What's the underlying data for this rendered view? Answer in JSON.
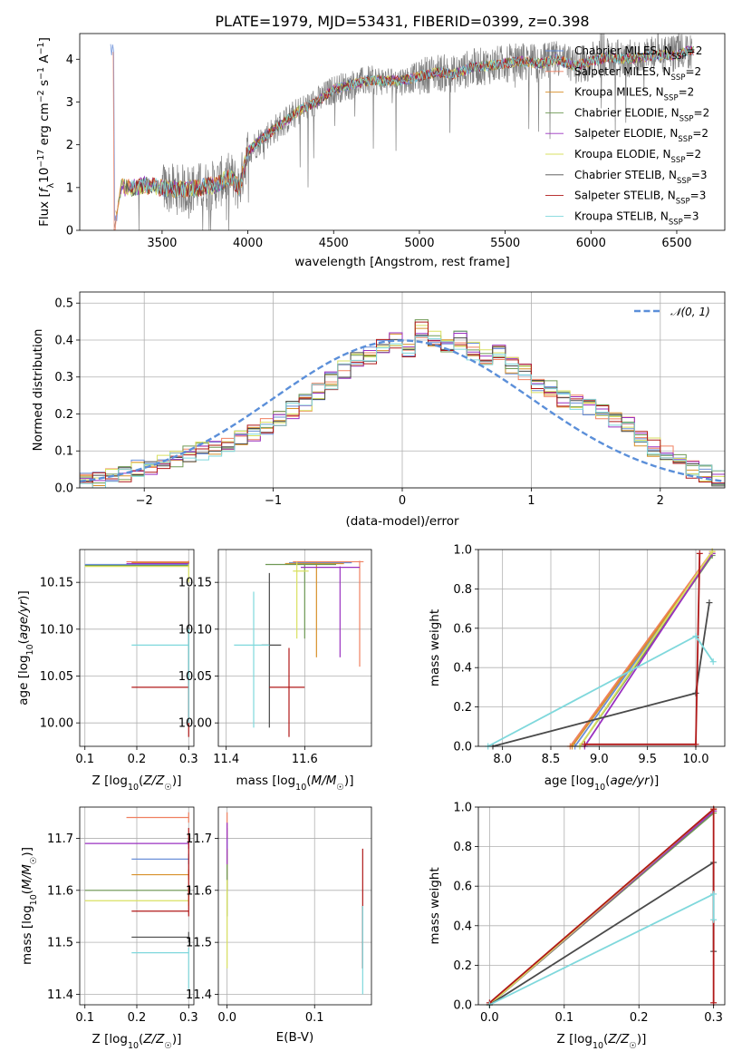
{
  "colors": {
    "Chabrier MILES": "#6a8fd8",
    "Salpeter MILES": "#f08060",
    "Kroupa MILES": "#d8902a",
    "Chabrier ELODIE": "#6f9a55",
    "Salpeter ELODIE": "#9a30c0",
    "Kroupa ELODIE": "#d9e060",
    "Chabrier STELIB": "#4a4a4a",
    "Salpeter STELIB": "#b01818",
    "Kroupa STELIB": "#7fd8dc"
  },
  "chart_data": [
    {
      "id": "spectrum",
      "type": "line",
      "title": "PLATE=1979, MJD=53431, FIBERID=0399, z=0.398",
      "xlabel": "wavelength [Angstrom, rest frame]",
      "ylabel": "Flux [f_λ 10^-17 erg cm^-2 s^-1 A^-1]",
      "xlim": [
        3020,
        6780
      ],
      "ylim": [
        0,
        4.6
      ],
      "xticks": [
        3500,
        4000,
        4500,
        5000,
        5500,
        6000,
        6500
      ],
      "yticks": [
        0,
        1,
        2,
        3,
        4
      ],
      "grid": false,
      "legend_position": "top-right",
      "data_color": "#808080",
      "data_anchors": [
        [
          3220,
          0.0
        ],
        [
          3260,
          1.0
        ],
        [
          3320,
          1.0
        ],
        [
          3400,
          1.05
        ],
        [
          3500,
          1.0
        ],
        [
          3600,
          0.95
        ],
        [
          3700,
          1.0
        ],
        [
          3800,
          1.05
        ],
        [
          3900,
          1.25
        ],
        [
          3950,
          1.0
        ],
        [
          4000,
          1.85
        ],
        [
          4100,
          2.2
        ],
        [
          4200,
          2.5
        ],
        [
          4300,
          2.8
        ],
        [
          4400,
          3.0
        ],
        [
          4500,
          3.3
        ],
        [
          4600,
          3.4
        ],
        [
          4700,
          3.5
        ],
        [
          4800,
          3.5
        ],
        [
          4900,
          3.5
        ],
        [
          5000,
          3.6
        ],
        [
          5100,
          3.7
        ],
        [
          5200,
          3.65
        ],
        [
          5300,
          3.8
        ],
        [
          5400,
          3.85
        ],
        [
          5500,
          3.9
        ],
        [
          5600,
          3.95
        ],
        [
          5700,
          3.9
        ],
        [
          5800,
          4.0
        ],
        [
          5900,
          3.85
        ],
        [
          6000,
          3.95
        ],
        [
          6100,
          4.05
        ],
        [
          6200,
          4.0
        ],
        [
          6300,
          4.05
        ],
        [
          6400,
          4.1
        ],
        [
          6500,
          4.1
        ],
        [
          6580,
          4.2
        ]
      ],
      "model_xrange": [
        3200,
        6600
      ],
      "legend": [
        {
          "label": "Chabrier MILES, N",
          "sub": "SSP",
          "tail": "=2"
        },
        {
          "label": "Salpeter MILES, N",
          "sub": "SSP",
          "tail": "=2"
        },
        {
          "label": "Kroupa MILES, N",
          "sub": "SSP",
          "tail": "=2"
        },
        {
          "label": "Chabrier ELODIE, N",
          "sub": "SSP",
          "tail": "=2"
        },
        {
          "label": "Salpeter ELODIE, N",
          "sub": "SSP",
          "tail": "=2"
        },
        {
          "label": "Kroupa ELODIE, N",
          "sub": "SSP",
          "tail": "=2"
        },
        {
          "label": "Chabrier STELIB, N",
          "sub": "SSP",
          "tail": "=3"
        },
        {
          "label": "Salpeter STELIB, N",
          "sub": "SSP",
          "tail": "=3"
        },
        {
          "label": "Kroupa STELIB, N",
          "sub": "SSP",
          "tail": "=3"
        }
      ]
    },
    {
      "id": "residuals",
      "type": "area",
      "title": "",
      "xlabel": "(data-model)/error",
      "ylabel": "Normed distribution",
      "xlim": [
        -2.5,
        2.5
      ],
      "ylim": [
        0,
        0.53
      ],
      "xticks": [
        -2,
        -1,
        0,
        1,
        2
      ],
      "yticks": [
        0.0,
        0.1,
        0.2,
        0.3,
        0.4,
        0.5
      ],
      "grid": true,
      "legend": "N(0,1)",
      "legend_position": "top-right",
      "gaussian_color": "#5b8fd9",
      "bin_width": 0.1,
      "hist_x_start": -2.5,
      "hist_reference": [
        0.018,
        0.02,
        0.035,
        0.04,
        0.055,
        0.06,
        0.07,
        0.08,
        0.09,
        0.1,
        0.11,
        0.12,
        0.13,
        0.15,
        0.17,
        0.19,
        0.21,
        0.23,
        0.26,
        0.29,
        0.32,
        0.35,
        0.36,
        0.38,
        0.4,
        0.37,
        0.43,
        0.4,
        0.38,
        0.4,
        0.37,
        0.35,
        0.37,
        0.33,
        0.31,
        0.28,
        0.27,
        0.24,
        0.23,
        0.22,
        0.2,
        0.18,
        0.17,
        0.13,
        0.11,
        0.09,
        0.07,
        0.05,
        0.04,
        0.03
      ]
    },
    {
      "id": "age_vs_Z",
      "type": "scatter",
      "xlabel": "Z [log10(Z/Z☉)]",
      "ylabel": "age  [log10(age/yr)]",
      "xlim": [
        0.09,
        0.31
      ],
      "ylim": [
        9.975,
        10.185
      ],
      "xticks": [
        0.1,
        0.2,
        0.3
      ],
      "yticks": [
        10.0,
        10.05,
        10.1,
        10.15
      ],
      "grid": true,
      "errorbars": [
        {
          "model": "Chabrier MILES",
          "x": 0.3,
          "y": 10.169,
          "xlo": 0.1,
          "xhi": 0.3,
          "ylo": 10.168,
          "yhi": 10.17
        },
        {
          "model": "Salpeter MILES",
          "x": 0.3,
          "y": 10.172,
          "xlo": 0.18,
          "xhi": 0.3,
          "ylo": 10.171,
          "yhi": 10.173
        },
        {
          "model": "Kroupa MILES",
          "x": 0.3,
          "y": 10.171,
          "xlo": 0.19,
          "xhi": 0.3,
          "ylo": 10.17,
          "yhi": 10.172
        },
        {
          "model": "Chabrier ELODIE",
          "x": 0.3,
          "y": 10.168,
          "xlo": 0.1,
          "xhi": 0.3,
          "ylo": 10.167,
          "yhi": 10.169
        },
        {
          "model": "Salpeter ELODIE",
          "x": 0.3,
          "y": 10.17,
          "xlo": 0.18,
          "xhi": 0.3,
          "ylo": 10.169,
          "yhi": 10.171
        },
        {
          "model": "Kroupa ELODIE",
          "x": 0.3,
          "y": 10.167,
          "xlo": 0.1,
          "xhi": 0.3,
          "ylo": 10.15,
          "yhi": 10.17
        },
        {
          "model": "Chabrier STELIB",
          "x": 0.3,
          "y": 10.14,
          "xlo": 0.3,
          "xhi": 0.3,
          "ylo": 10.0,
          "yhi": 10.145
        },
        {
          "model": "Salpeter STELIB",
          "x": 0.3,
          "y": 10.038,
          "xlo": 0.19,
          "xhi": 0.3,
          "ylo": 9.985,
          "yhi": 10.045
        },
        {
          "model": "Kroupa STELIB",
          "x": 0.3,
          "y": 10.083,
          "xlo": 0.19,
          "xhi": 0.3,
          "ylo": 10.0,
          "yhi": 10.1
        }
      ]
    },
    {
      "id": "age_vs_mass",
      "type": "scatter",
      "xlabel": "mass [log10(M/M☉)]",
      "ylabel": "",
      "xlim": [
        11.38,
        11.77
      ],
      "ylim": [
        9.975,
        10.185
      ],
      "xticks": [
        11.4,
        11.6
      ],
      "yticks": [
        10.0,
        10.05,
        10.1,
        10.15
      ],
      "grid": true,
      "errorbars": [
        {
          "model": "Chabrier MILES",
          "x": 11.66,
          "y": 10.171,
          "xlo": 11.56,
          "xhi": 11.72,
          "ylo": 10.17,
          "yhi": 10.172
        },
        {
          "model": "Salpeter MILES",
          "x": 11.74,
          "y": 10.172,
          "xlo": 11.57,
          "xhi": 11.75,
          "ylo": 10.06,
          "yhi": 10.173
        },
        {
          "model": "Kroupa MILES",
          "x": 11.63,
          "y": 10.17,
          "xlo": 11.55,
          "xhi": 11.7,
          "ylo": 10.07,
          "yhi": 10.171
        },
        {
          "model": "Chabrier ELODIE",
          "x": 11.6,
          "y": 10.169,
          "xlo": 11.5,
          "xhi": 11.68,
          "ylo": 10.09,
          "yhi": 10.17
        },
        {
          "model": "Salpeter ELODIE",
          "x": 11.69,
          "y": 10.166,
          "xlo": 11.59,
          "xhi": 11.74,
          "ylo": 10.07,
          "yhi": 10.167
        },
        {
          "model": "Kroupa ELODIE",
          "x": 11.58,
          "y": 10.162,
          "xlo": 11.57,
          "xhi": 11.61,
          "ylo": 10.09,
          "yhi": 10.172
        },
        {
          "model": "Chabrier STELIB",
          "x": 11.51,
          "y": 10.083,
          "xlo": 11.49,
          "xhi": 11.54,
          "ylo": 9.995,
          "yhi": 10.16
        },
        {
          "model": "Salpeter STELIB",
          "x": 11.56,
          "y": 10.038,
          "xlo": 11.51,
          "xhi": 11.6,
          "ylo": 9.985,
          "yhi": 10.08
        },
        {
          "model": "Kroupa STELIB",
          "x": 11.47,
          "y": 10.083,
          "xlo": 11.42,
          "xhi": 11.51,
          "ylo": 9.995,
          "yhi": 10.14
        }
      ]
    },
    {
      "id": "mass_weight_vs_age",
      "type": "line",
      "xlabel": "age  [log10(age/yr)]",
      "ylabel": "mass weight",
      "xlim": [
        7.75,
        10.3
      ],
      "ylim": [
        0,
        1.0
      ],
      "xticks": [
        8.0,
        8.5,
        9.0,
        9.5,
        10.0
      ],
      "yticks": [
        0.0,
        0.2,
        0.4,
        0.6,
        0.8,
        1.0
      ],
      "grid": true,
      "series": [
        {
          "model": "Chabrier MILES",
          "x": [
            8.75,
            10.17
          ],
          "y": [
            0.0,
            0.98
          ]
        },
        {
          "model": "Salpeter MILES",
          "x": [
            8.7,
            10.17
          ],
          "y": [
            0.0,
            0.99
          ]
        },
        {
          "model": "Kroupa MILES",
          "x": [
            8.72,
            10.17
          ],
          "y": [
            0.0,
            0.98
          ]
        },
        {
          "model": "Chabrier ELODIE",
          "x": [
            8.8,
            10.17
          ],
          "y": [
            0.0,
            0.97
          ]
        },
        {
          "model": "Salpeter ELODIE",
          "x": [
            8.85,
            10.17
          ],
          "y": [
            0.0,
            0.98
          ]
        },
        {
          "model": "Kroupa ELODIE",
          "x": [
            8.8,
            10.17
          ],
          "y": [
            0.0,
            0.99
          ]
        },
        {
          "model": "Chabrier STELIB",
          "x": [
            7.9,
            10.0,
            10.14
          ],
          "y": [
            0.0,
            0.27,
            0.73
          ]
        },
        {
          "model": "Salpeter STELIB",
          "x": [
            8.85,
            10.0,
            10.04
          ],
          "y": [
            0.01,
            0.01,
            0.98
          ]
        },
        {
          "model": "Kroupa STELIB",
          "x": [
            7.85,
            10.0,
            10.18
          ],
          "y": [
            0.0,
            0.56,
            0.43
          ]
        }
      ]
    },
    {
      "id": "mass_vs_Z",
      "type": "scatter",
      "xlabel": "Z [log10(Z/Z☉)]",
      "ylabel": "mass [log10(M/M☉)]",
      "xlim": [
        0.09,
        0.31
      ],
      "ylim": [
        11.38,
        11.76
      ],
      "xticks": [
        0.1,
        0.2,
        0.3
      ],
      "yticks": [
        11.4,
        11.5,
        11.6,
        11.7
      ],
      "grid": true,
      "errorbars": [
        {
          "model": "Chabrier MILES",
          "x": 0.3,
          "y": 11.66,
          "xlo": 0.19,
          "xhi": 0.3,
          "ylo": 11.65,
          "yhi": 11.67
        },
        {
          "model": "Salpeter MILES",
          "x": 0.3,
          "y": 11.74,
          "xlo": 0.18,
          "xhi": 0.3,
          "ylo": 11.73,
          "yhi": 11.75
        },
        {
          "model": "Kroupa MILES",
          "x": 0.3,
          "y": 11.63,
          "xlo": 0.19,
          "xhi": 0.3,
          "ylo": 11.62,
          "yhi": 11.64
        },
        {
          "model": "Chabrier ELODIE",
          "x": 0.3,
          "y": 11.6,
          "xlo": 0.1,
          "xhi": 0.3,
          "ylo": 11.59,
          "yhi": 11.61
        },
        {
          "model": "Salpeter ELODIE",
          "x": 0.3,
          "y": 11.69,
          "xlo": 0.1,
          "xhi": 0.3,
          "ylo": 11.68,
          "yhi": 11.7
        },
        {
          "model": "Kroupa ELODIE",
          "x": 0.3,
          "y": 11.58,
          "xlo": 0.1,
          "xhi": 0.3,
          "ylo": 11.57,
          "yhi": 11.59
        },
        {
          "model": "Chabrier STELIB",
          "x": 0.3,
          "y": 11.51,
          "xlo": 0.19,
          "xhi": 0.3,
          "ylo": 11.5,
          "yhi": 11.52
        },
        {
          "model": "Salpeter STELIB",
          "x": 0.3,
          "y": 11.56,
          "xlo": 0.19,
          "xhi": 0.3,
          "ylo": 11.55,
          "yhi": 11.72
        },
        {
          "model": "Kroupa STELIB",
          "x": 0.3,
          "y": 11.48,
          "xlo": 0.19,
          "xhi": 0.3,
          "ylo": 11.41,
          "yhi": 11.49
        }
      ]
    },
    {
      "id": "mass_vs_EBV",
      "type": "scatter",
      "xlabel": "E(B-V)",
      "ylabel": "",
      "xlim": [
        -0.01,
        0.165
      ],
      "ylim": [
        11.38,
        11.76
      ],
      "xticks": [
        0.0,
        0.1
      ],
      "yticks": [
        11.4,
        11.5,
        11.6,
        11.7
      ],
      "grid": true,
      "errorbars": [
        {
          "model": "Chabrier MILES",
          "x": 0.0,
          "y": 11.66,
          "xlo": 0.0,
          "xhi": 0.0,
          "ylo": 11.6,
          "yhi": 11.72
        },
        {
          "model": "Salpeter MILES",
          "x": 0.0,
          "y": 11.74,
          "xlo": 0.0,
          "xhi": 0.0,
          "ylo": 11.7,
          "yhi": 11.75
        },
        {
          "model": "Kroupa MILES",
          "x": 0.0,
          "y": 11.63,
          "xlo": 0.0,
          "xhi": 0.0,
          "ylo": 11.6,
          "yhi": 11.68
        },
        {
          "model": "Chabrier ELODIE",
          "x": 0.0,
          "y": 11.6,
          "xlo": 0.0,
          "xhi": 0.0,
          "ylo": 11.55,
          "yhi": 11.65
        },
        {
          "model": "Salpeter ELODIE",
          "x": 0.0,
          "y": 11.69,
          "xlo": 0.0,
          "xhi": 0.0,
          "ylo": 11.65,
          "yhi": 11.73
        },
        {
          "model": "Kroupa ELODIE",
          "x": 0.0,
          "y": 11.58,
          "xlo": 0.0,
          "xhi": 0.0,
          "ylo": 11.45,
          "yhi": 11.62
        },
        {
          "model": "Chabrier STELIB",
          "x": 0.155,
          "y": 11.51,
          "xlo": 0.155,
          "xhi": 0.155,
          "ylo": 11.45,
          "yhi": 11.57
        },
        {
          "model": "Salpeter STELIB",
          "x": 0.155,
          "y": 11.56,
          "xlo": 0.155,
          "xhi": 0.155,
          "ylo": 11.45,
          "yhi": 11.68
        },
        {
          "model": "Kroupa STELIB",
          "x": 0.155,
          "y": 11.48,
          "xlo": 0.155,
          "xhi": 0.155,
          "ylo": 11.4,
          "yhi": 11.57
        }
      ]
    },
    {
      "id": "mass_weight_vs_Z",
      "type": "line",
      "xlabel": "Z [log10(Z/Z☉)]",
      "ylabel": "mass weight",
      "xlim": [
        -0.015,
        0.315
      ],
      "ylim": [
        0,
        1.0
      ],
      "xticks": [
        0.0,
        0.1,
        0.2,
        0.3
      ],
      "yticks": [
        0.0,
        0.2,
        0.4,
        0.6,
        0.8,
        1.0
      ],
      "grid": true,
      "series": [
        {
          "model": "Chabrier MILES",
          "x": [
            0.0,
            0.3
          ],
          "y": [
            0.0,
            0.98
          ]
        },
        {
          "model": "Salpeter MILES",
          "x": [
            0.0,
            0.3
          ],
          "y": [
            0.0,
            0.99
          ]
        },
        {
          "model": "Kroupa MILES",
          "x": [
            0.0,
            0.3
          ],
          "y": [
            0.0,
            0.98
          ]
        },
        {
          "model": "Chabrier ELODIE",
          "x": [
            0.0,
            0.3
          ],
          "y": [
            0.0,
            0.97
          ]
        },
        {
          "model": "Salpeter ELODIE",
          "x": [
            0.0,
            0.3
          ],
          "y": [
            0.0,
            0.98
          ]
        },
        {
          "model": "Kroupa ELODIE",
          "x": [
            0.0,
            0.3
          ],
          "y": [
            0.0,
            0.99
          ]
        },
        {
          "model": "Chabrier STELIB",
          "x": [
            0.0,
            0.3,
            0.3
          ],
          "y": [
            0.0,
            0.72,
            0.27
          ]
        },
        {
          "model": "Salpeter STELIB",
          "x": [
            0.0,
            0.3,
            0.3
          ],
          "y": [
            0.01,
            0.99,
            0.01
          ]
        },
        {
          "model": "Kroupa STELIB",
          "x": [
            0.0,
            0.3,
            0.3
          ],
          "y": [
            0.0,
            0.56,
            0.43
          ]
        }
      ]
    }
  ]
}
